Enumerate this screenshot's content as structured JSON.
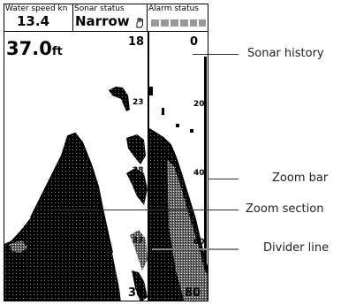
{
  "status_bar": {
    "water_speed": {
      "label": "Water speed kn",
      "value": "13.4"
    },
    "sonar_status": {
      "label": "Sonar status",
      "value": "Narrow"
    },
    "alarm_status": {
      "label": "Alarm status"
    }
  },
  "depth": {
    "value": "37.0",
    "unit": "ft"
  },
  "zoom_scale": {
    "top": "18",
    "bottom": "38",
    "marks": [
      "23",
      "28",
      "33"
    ]
  },
  "history_scale": {
    "top": "0",
    "bottom": "80",
    "marks": [
      "20",
      "40",
      "60"
    ]
  },
  "callouts": {
    "sonar_history": "Sonar history",
    "zoom_bar": "Zoom bar",
    "zoom_section": "Zoom section",
    "divider_line": "Divider line"
  },
  "icons": [
    "hand-icon",
    "alarm-icons"
  ],
  "colors": {
    "foreground": "#000000",
    "background": "#ffffff",
    "callout": "#333333"
  }
}
